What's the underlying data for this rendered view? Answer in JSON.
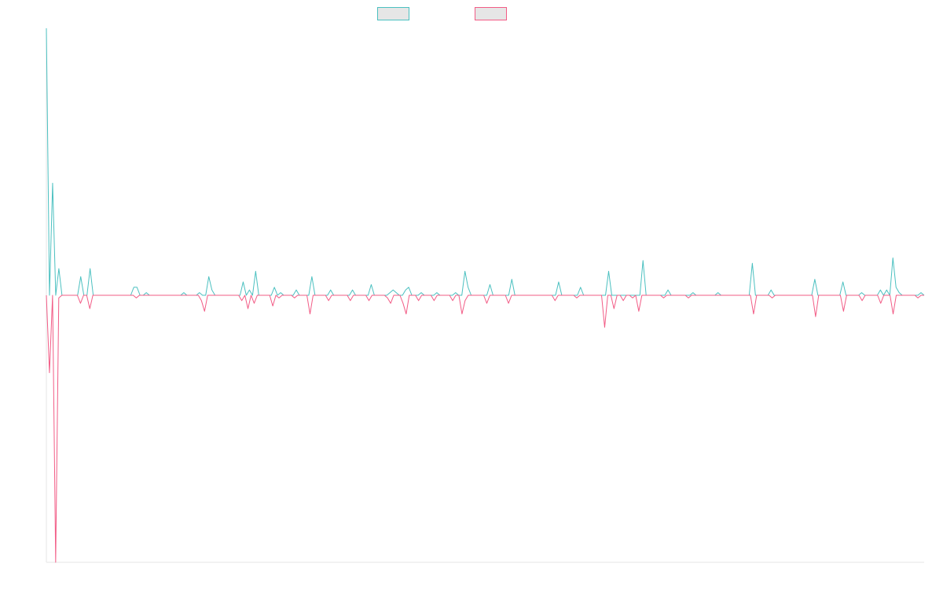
{
  "chart_data": {
    "type": "line",
    "title": "",
    "xlabel": "",
    "ylabel": "",
    "ylim": [
      -1.0,
      1.0
    ],
    "grid": false,
    "legend_position": "top-center",
    "show_axes": [
      "left",
      "bottom"
    ],
    "tick_labels_visible": false,
    "series": [
      {
        "name": "",
        "color": "#4BC0C0",
        "values": [
          1.0,
          0.0,
          0.42,
          0.0,
          0.1,
          0.0,
          0.0,
          0.0,
          0.0,
          0.0,
          0.0,
          0.07,
          0.0,
          0.0,
          0.1,
          0.0,
          0.0,
          0.0,
          0.0,
          0.0,
          0.0,
          0.0,
          0.0,
          0.0,
          0.0,
          0.0,
          0.0,
          0.0,
          0.03,
          0.03,
          0.0,
          0.0,
          0.01,
          0.0,
          0.0,
          0.0,
          0.0,
          0.0,
          0.0,
          0.0,
          0.0,
          0.0,
          0.0,
          0.0,
          0.01,
          0.0,
          0.0,
          0.0,
          0.0,
          0.01,
          0.0,
          0.0,
          0.07,
          0.02,
          0.0,
          0.0,
          0.0,
          0.0,
          0.0,
          0.0,
          0.0,
          0.0,
          0.0,
          0.05,
          0.0,
          0.02,
          0.0,
          0.09,
          0.0,
          0.0,
          0.0,
          0.0,
          0.0,
          0.03,
          0.0,
          0.01,
          0.0,
          0.0,
          0.0,
          0.0,
          0.02,
          0.0,
          0.0,
          0.0,
          0.0,
          0.07,
          0.0,
          0.0,
          0.0,
          0.0,
          0.0,
          0.02,
          0.0,
          0.0,
          0.0,
          0.0,
          0.0,
          0.0,
          0.02,
          0.0,
          0.0,
          0.0,
          0.0,
          0.0,
          0.04,
          0.0,
          0.0,
          0.0,
          0.0,
          0.0,
          0.01,
          0.02,
          0.01,
          0.0,
          0.0,
          0.02,
          0.03,
          0.0,
          0.0,
          0.0,
          0.01,
          0.0,
          0.0,
          0.0,
          0.0,
          0.01,
          0.0,
          0.0,
          0.0,
          0.0,
          0.0,
          0.01,
          0.0,
          0.0,
          0.09,
          0.03,
          0.0,
          0.0,
          0.0,
          0.0,
          0.0,
          0.0,
          0.04,
          0.0,
          0.0,
          0.0,
          0.0,
          0.0,
          0.0,
          0.06,
          0.0,
          0.0,
          0.0,
          0.0,
          0.0,
          0.0,
          0.0,
          0.0,
          0.0,
          0.0,
          0.0,
          0.0,
          0.0,
          0.0,
          0.05,
          0.0,
          0.0,
          0.0,
          0.0,
          0.0,
          0.0,
          0.03,
          0.0,
          0.0,
          0.0,
          0.0,
          0.0,
          0.0,
          0.0,
          0.0,
          0.09,
          0.0,
          0.0,
          0.0,
          0.0,
          0.0,
          0.0,
          0.0,
          0.0,
          0.0,
          0.0,
          0.13,
          0.0,
          0.0,
          0.0,
          0.0,
          0.0,
          0.0,
          0.0,
          0.02,
          0.0,
          0.0,
          0.0,
          0.0,
          0.0,
          0.0,
          0.0,
          0.01,
          0.0,
          0.0,
          0.0,
          0.0,
          0.0,
          0.0,
          0.0,
          0.01,
          0.0,
          0.0,
          0.0,
          0.0,
          0.0,
          0.0,
          0.0,
          0.0,
          0.0,
          0.0,
          0.12,
          0.0,
          0.0,
          0.0,
          0.0,
          0.0,
          0.02,
          0.0,
          0.0,
          0.0,
          0.0,
          0.0,
          0.0,
          0.0,
          0.0,
          0.0,
          0.0,
          0.0,
          0.0,
          0.0,
          0.06,
          0.0,
          0.0,
          0.0,
          0.0,
          0.0,
          0.0,
          0.0,
          0.0,
          0.05,
          0.0,
          0.0,
          0.0,
          0.0,
          0.0,
          0.01,
          0.0,
          0.0,
          0.0,
          0.0,
          0.0,
          0.02,
          0.0,
          0.02,
          0.0,
          0.14,
          0.03,
          0.01,
          0.0,
          0.0,
          0.0,
          0.0,
          0.0,
          0.0,
          0.01,
          0.0
        ]
      },
      {
        "name": "",
        "color": "#F25C86",
        "values": [
          0.0,
          -0.29,
          0.0,
          -1.0,
          -0.01,
          0.0,
          0.0,
          0.0,
          0.0,
          0.0,
          0.0,
          -0.03,
          0.0,
          0.0,
          -0.05,
          0.0,
          0.0,
          0.0,
          0.0,
          0.0,
          0.0,
          0.0,
          0.0,
          0.0,
          0.0,
          0.0,
          0.0,
          0.0,
          0.0,
          -0.01,
          0.0,
          0.0,
          0.0,
          0.0,
          0.0,
          0.0,
          0.0,
          0.0,
          0.0,
          0.0,
          0.0,
          0.0,
          0.0,
          0.0,
          0.0,
          0.0,
          0.0,
          0.0,
          0.0,
          0.0,
          -0.02,
          -0.06,
          0.0,
          0.0,
          0.0,
          0.0,
          0.0,
          0.0,
          0.0,
          0.0,
          0.0,
          0.0,
          0.0,
          -0.02,
          0.0,
          -0.05,
          0.0,
          -0.03,
          0.0,
          0.0,
          0.0,
          0.0,
          0.0,
          -0.04,
          0.0,
          -0.01,
          0.0,
          0.0,
          0.0,
          0.0,
          -0.01,
          0.0,
          0.0,
          0.0,
          0.0,
          -0.07,
          0.0,
          0.0,
          0.0,
          0.0,
          0.0,
          -0.02,
          0.0,
          0.0,
          0.0,
          0.0,
          0.0,
          0.0,
          -0.02,
          0.0,
          0.0,
          0.0,
          0.0,
          0.0,
          -0.02,
          0.0,
          0.0,
          0.0,
          0.0,
          0.0,
          -0.01,
          -0.03,
          0.0,
          0.0,
          0.0,
          -0.03,
          -0.07,
          0.0,
          0.0,
          0.0,
          -0.02,
          0.0,
          0.0,
          0.0,
          0.0,
          -0.02,
          0.0,
          0.0,
          0.0,
          0.0,
          0.0,
          -0.02,
          0.0,
          0.0,
          -0.07,
          -0.02,
          0.0,
          0.0,
          0.0,
          0.0,
          0.0,
          0.0,
          -0.03,
          0.0,
          0.0,
          0.0,
          0.0,
          0.0,
          0.0,
          -0.03,
          0.0,
          0.0,
          0.0,
          0.0,
          0.0,
          0.0,
          0.0,
          0.0,
          0.0,
          0.0,
          0.0,
          0.0,
          0.0,
          0.0,
          -0.02,
          0.0,
          0.0,
          0.0,
          0.0,
          0.0,
          0.0,
          -0.01,
          0.0,
          0.0,
          0.0,
          0.0,
          0.0,
          0.0,
          0.0,
          0.0,
          -0.12,
          0.0,
          0.0,
          -0.05,
          0.0,
          0.0,
          -0.02,
          0.0,
          0.0,
          -0.01,
          0.0,
          -0.06,
          0.0,
          0.0,
          0.0,
          0.0,
          0.0,
          0.0,
          0.0,
          -0.01,
          0.0,
          0.0,
          0.0,
          0.0,
          0.0,
          0.0,
          0.0,
          -0.01,
          0.0,
          0.0,
          0.0,
          0.0,
          0.0,
          0.0,
          0.0,
          0.0,
          0.0,
          0.0,
          0.0,
          0.0,
          0.0,
          0.0,
          0.0,
          0.0,
          0.0,
          0.0,
          0.0,
          0.0,
          -0.07,
          0.0,
          0.0,
          0.0,
          0.0,
          0.0,
          -0.01,
          0.0,
          0.0,
          0.0,
          0.0,
          0.0,
          0.0,
          0.0,
          0.0,
          0.0,
          0.0,
          0.0,
          0.0,
          0.0,
          -0.08,
          0.0,
          0.0,
          0.0,
          0.0,
          0.0,
          0.0,
          0.0,
          0.0,
          -0.06,
          0.0,
          0.0,
          0.0,
          0.0,
          0.0,
          -0.02,
          0.0,
          0.0,
          0.0,
          0.0,
          0.0,
          -0.03,
          0.0,
          0.0,
          0.0,
          -0.07,
          0.0,
          0.0,
          0.0,
          0.0,
          0.0,
          0.0,
          0.0,
          -0.01,
          0.0,
          0.0
        ]
      }
    ]
  },
  "colors": {
    "series1": "#4BC0C0",
    "series2": "#F25C86",
    "axis": "#e5e5e5",
    "legend_fill": "#e6e6e6",
    "background": "#ffffff"
  }
}
